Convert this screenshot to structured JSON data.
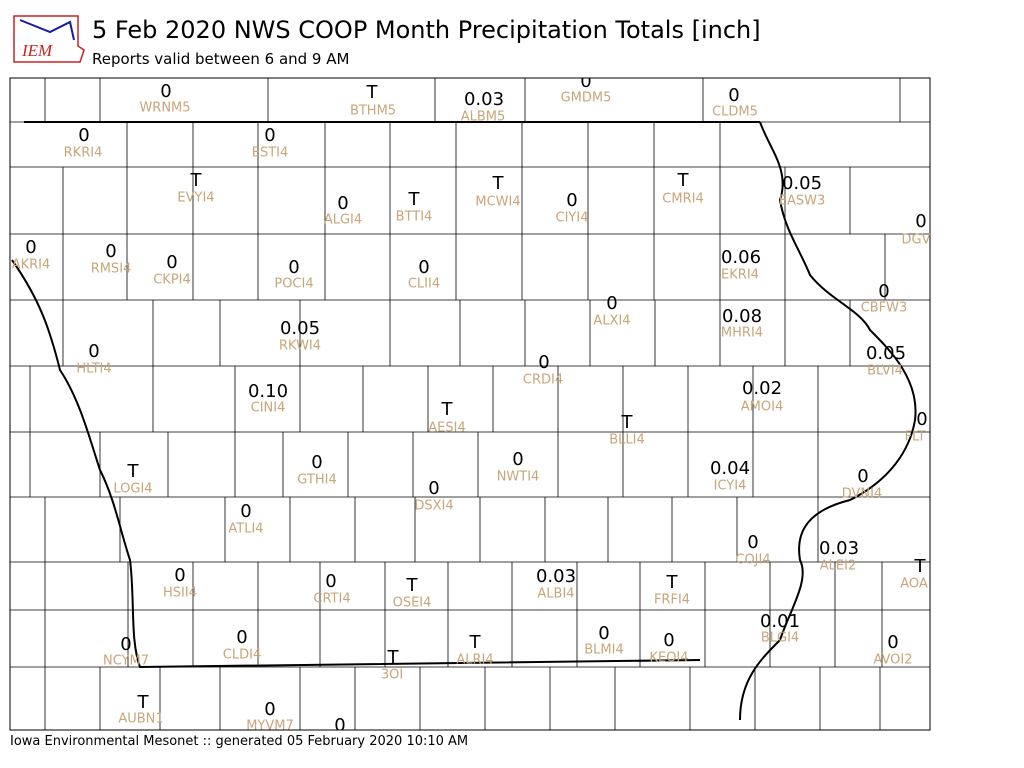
{
  "header": {
    "logo": "IEM",
    "title": "5 Feb 2020 NWS COOP Month Precipitation Totals [inch]",
    "subtitle": "Reports valid between 6 and 9 AM"
  },
  "stations": [
    {
      "value": "0",
      "id": "WRNM5"
    },
    {
      "value": "T",
      "id": "BTHM5"
    },
    {
      "value": "0.03",
      "id": "ALBM5"
    },
    {
      "value": "0",
      "id": "GMDM5"
    },
    {
      "value": "0",
      "id": "CLDM5"
    },
    {
      "value": "0",
      "id": "RKRI4"
    },
    {
      "value": "0",
      "id": "ESTI4"
    },
    {
      "value": "T",
      "id": "EVYI4"
    },
    {
      "value": "0",
      "id": "ALGI4"
    },
    {
      "value": "T",
      "id": "BTTI4"
    },
    {
      "value": "T",
      "id": "MCWI4"
    },
    {
      "value": "0",
      "id": "CIYI4"
    },
    {
      "value": "T",
      "id": "CMRI4"
    },
    {
      "value": "0.05",
      "id": "EASW3"
    },
    {
      "value": "0",
      "id": "DGV"
    },
    {
      "value": "0",
      "id": "AKRI4"
    },
    {
      "value": "0",
      "id": "RMSI4"
    },
    {
      "value": "0",
      "id": "CKPI4"
    },
    {
      "value": "0",
      "id": "POCI4"
    },
    {
      "value": "0",
      "id": "CLII4"
    },
    {
      "value": "0.06",
      "id": "EKRI4"
    },
    {
      "value": "0",
      "id": "CBFW3"
    },
    {
      "value": "0",
      "id": "ALXI4"
    },
    {
      "value": "0.05",
      "id": "RKWI4"
    },
    {
      "value": "0.08",
      "id": "MHRI4"
    },
    {
      "value": "0",
      "id": "HLTI4"
    },
    {
      "value": "0",
      "id": "CRDI4"
    },
    {
      "value": "0.05",
      "id": "BLVI4"
    },
    {
      "value": "0.10",
      "id": "CINI4"
    },
    {
      "value": "0.02",
      "id": "AMOI4"
    },
    {
      "value": "T",
      "id": "AESI4"
    },
    {
      "value": "T",
      "id": "BLLI4"
    },
    {
      "value": "0",
      "id": "FLT"
    },
    {
      "value": "T",
      "id": "LOGI4"
    },
    {
      "value": "0",
      "id": "GTHI4"
    },
    {
      "value": "0",
      "id": "NWTI4"
    },
    {
      "value": "0.04",
      "id": "ICYI4"
    },
    {
      "value": "0",
      "id": "DVNI4"
    },
    {
      "value": "0",
      "id": "DSXI4"
    },
    {
      "value": "0",
      "id": "ATLI4"
    },
    {
      "value": "0",
      "id": "COJI4"
    },
    {
      "value": "0.03",
      "id": "ALEI2"
    },
    {
      "value": "T",
      "id": "AOA"
    },
    {
      "value": "0",
      "id": "HSII4"
    },
    {
      "value": "0",
      "id": "CRTI4"
    },
    {
      "value": "T",
      "id": "OSEI4"
    },
    {
      "value": "0.03",
      "id": "ALBI4"
    },
    {
      "value": "T",
      "id": "FRFI4"
    },
    {
      "value": "0.01",
      "id": "BLGI4"
    },
    {
      "value": "0",
      "id": "BLMI4"
    },
    {
      "value": "0",
      "id": "KEOI4"
    },
    {
      "value": "0",
      "id": "CLDI4"
    },
    {
      "value": "0",
      "id": "NCYM7"
    },
    {
      "value": "0",
      "id": "AVOI2"
    },
    {
      "value": "T",
      "id": "3OI"
    },
    {
      "value": "T",
      "id": "ALRI4"
    },
    {
      "value": "T",
      "id": "AUBN1"
    },
    {
      "value": "0",
      "id": "MYVM7"
    },
    {
      "value": "0"
    }
  ],
  "footer": "Iowa Environmental Mesonet :: generated 05 February 2020 10:10 AM"
}
